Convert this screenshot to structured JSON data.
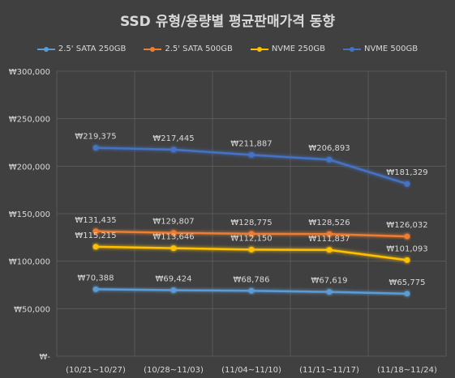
{
  "chart_data": {
    "type": "line",
    "title": "SSD 유형/용량별 평균판매가격 동향",
    "categories": [
      "(10/21~10/27)",
      "(10/28~11/03)",
      "(11/04~11/10)",
      "(11/11~11/17)",
      "(11/18~11/24)"
    ],
    "series": [
      {
        "name": "2.5' SATA 250GB",
        "color": "#5b9bd5",
        "values": [
          70388,
          69424,
          68786,
          67619,
          65775
        ],
        "labels": [
          "₩70,388",
          "₩69,424",
          "₩68,786",
          "₩67,619",
          "₩65,775"
        ]
      },
      {
        "name": "2.5' SATA 500GB",
        "color": "#ed7d31",
        "values": [
          131435,
          129807,
          128775,
          128526,
          126032
        ],
        "labels": [
          "₩131,435",
          "₩129,807",
          "₩128,775",
          "₩128,526",
          "₩126,032"
        ]
      },
      {
        "name": "NVME 250GB",
        "color": "#ffc000",
        "values": [
          115215,
          113646,
          112150,
          111837,
          101093
        ],
        "labels": [
          "₩115,215",
          "₩113,646",
          "₩112,150",
          "₩111,837",
          "₩101,093"
        ]
      },
      {
        "name": "NVME 500GB",
        "color": "#4472c4",
        "values": [
          219375,
          217445,
          211887,
          206893,
          181329
        ],
        "labels": [
          "₩219,375",
          "₩217,445",
          "₩211,887",
          "₩206,893",
          "₩181,329"
        ]
      }
    ],
    "ylim": [
      0,
      300000
    ],
    "yticks": [
      0,
      50000,
      100000,
      150000,
      200000,
      250000,
      300000
    ],
    "ytick_labels": [
      "₩-",
      "₩50,000",
      "₩100,000",
      "₩150,000",
      "₩200,000",
      "₩250,000",
      "₩300,000"
    ],
    "grid": true,
    "legend_position": "top",
    "background": "#404040",
    "text_color": "#d9d9d9",
    "grid_color": "#595959"
  }
}
